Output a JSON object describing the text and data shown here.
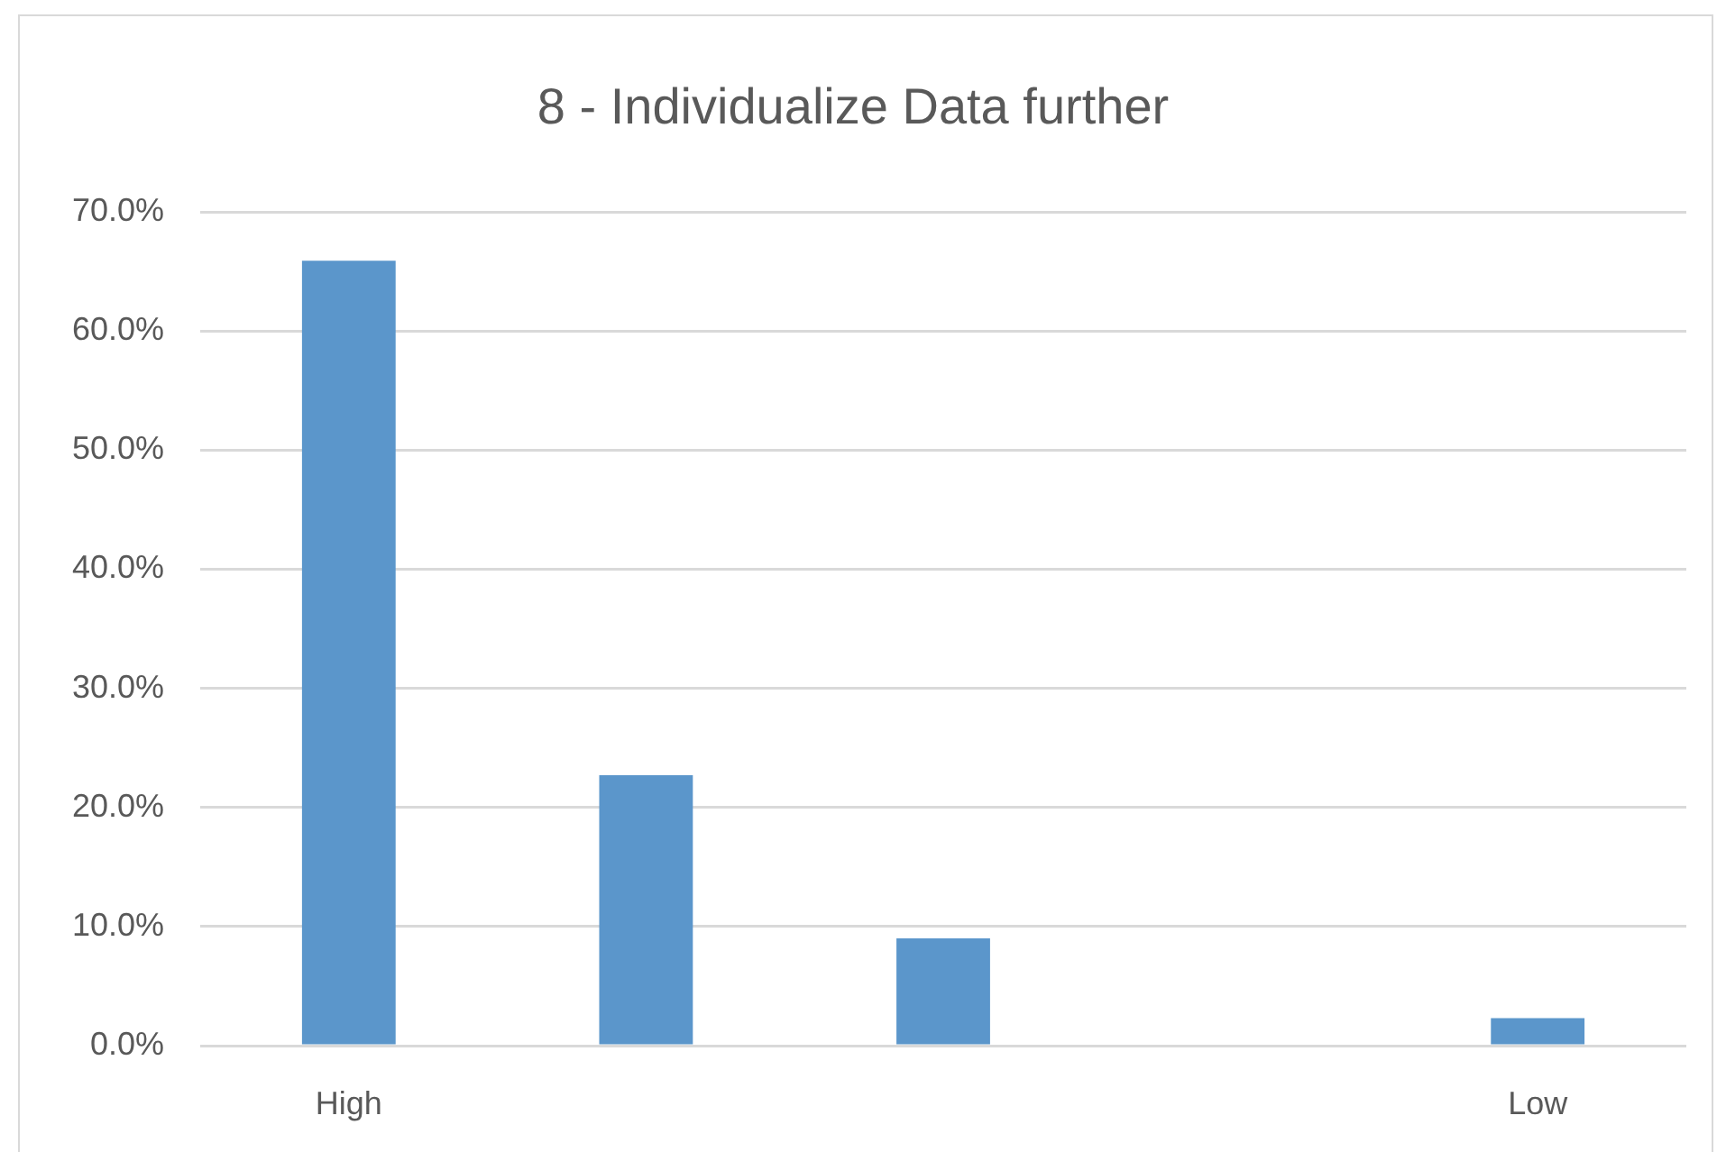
{
  "chart_data": {
    "type": "bar",
    "title": "8 - Individualize Data further",
    "categories": [
      "High",
      null,
      null,
      null,
      "Low"
    ],
    "values": [
      65.9,
      22.7,
      9.0,
      0,
      2.3
    ],
    "color": "#5b96cb",
    "ylim": [
      0,
      70
    ],
    "yticks": [
      {
        "value": 0,
        "label": "0.0%"
      },
      {
        "value": 10,
        "label": "10.0%"
      },
      {
        "value": 20,
        "label": "20.0%"
      },
      {
        "value": 30,
        "label": "30.0%"
      },
      {
        "value": 40,
        "label": "40.0%"
      },
      {
        "value": 50,
        "label": "50.0%"
      },
      {
        "value": 60,
        "label": "60.0%"
      },
      {
        "value": 70,
        "label": "70.0%"
      }
    ],
    "grid": "y",
    "legend": false
  }
}
